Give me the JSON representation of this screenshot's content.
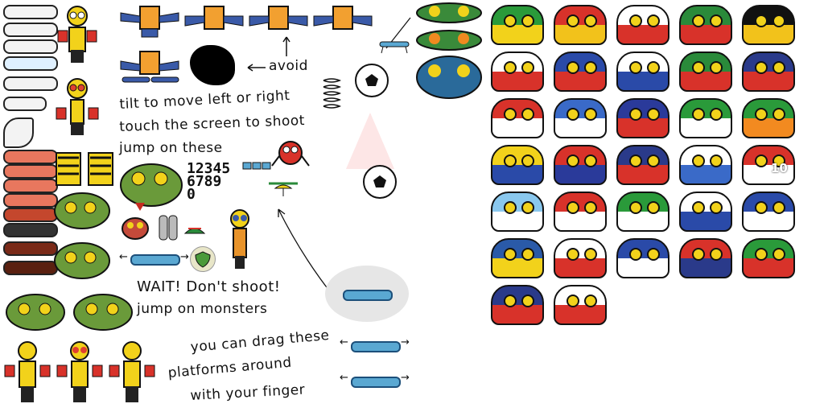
{
  "instructions": {
    "avoid": "avoid",
    "tilt": "tilt to move left or right",
    "touch": "touch the screen to shoot",
    "jump_these": "jump on these",
    "wait": "WAIT! Don't shoot!",
    "jump_monsters": "jump on monsters",
    "drag_line1": "you can drag these",
    "drag_line2": "platforms around",
    "drag_line3": "with your finger"
  },
  "digits": {
    "row1": "12345",
    "row2": "6789",
    "row3": "0"
  },
  "score_badge": "10",
  "icons": {
    "ball": "soccer-ball-icon",
    "spring": "spring-icon",
    "propeller": "propeller-hat-icon",
    "jetpack": "jetpack-icon",
    "shield": "shield-icon",
    "black_hole": "black-hole-icon",
    "trampoline": "trampoline-icon"
  },
  "colors": {
    "monster_green": "#6a9a3a",
    "referee_yellow": "#f2d21b",
    "card_red": "#d8322a",
    "platform_blue": "#5aa8d2"
  },
  "flag_monsters": [
    "brazil",
    "spain",
    "japan",
    "mexico",
    "germany",
    "england",
    "france",
    "israel",
    "portugal",
    "usa",
    "switzerland",
    "greece",
    "chile",
    "nigeria",
    "ireland",
    "colombia",
    "croatia",
    "australia",
    "uruguay",
    "denmark",
    "argentina",
    "turkey",
    "algeria",
    "russia",
    "honduras",
    "sweden",
    "czech",
    "scotland",
    "norway",
    "iran",
    "new-zealand",
    "eyeball"
  ]
}
